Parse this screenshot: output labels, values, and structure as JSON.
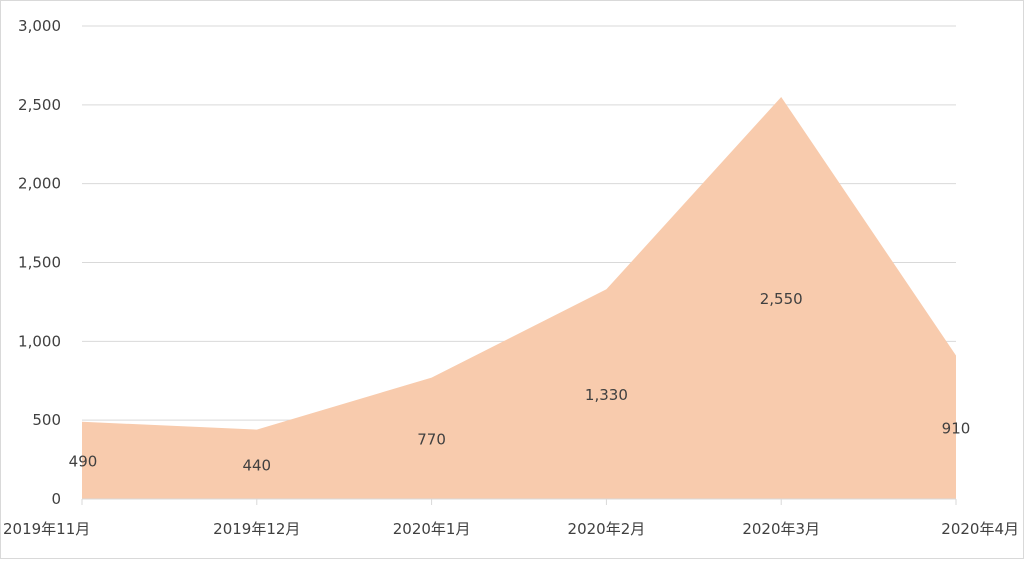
{
  "chart_data": {
    "type": "area",
    "title": "",
    "xlabel": "",
    "ylabel": "",
    "categories": [
      "2019年11月",
      "2019年12月",
      "2020年1月",
      "2020年2月",
      "2020年3月",
      "2020年4月"
    ],
    "series": [
      {
        "values": [
          490,
          440,
          770,
          1330,
          2550,
          910
        ],
        "labels": [
          "490",
          "440",
          "770",
          "1,330",
          "2,550",
          "910"
        ],
        "color": "#f8cbad"
      }
    ],
    "ylim": [
      0,
      3000
    ],
    "yticks": [
      0,
      500,
      1000,
      1500,
      2000,
      2500,
      3000
    ],
    "ytick_labels": [
      "0",
      "500",
      "1,000",
      "1,500",
      "2,000",
      "2,500",
      "3,000"
    ],
    "grid": true,
    "gridline_color": "#d9d9d9",
    "legend": "none"
  }
}
